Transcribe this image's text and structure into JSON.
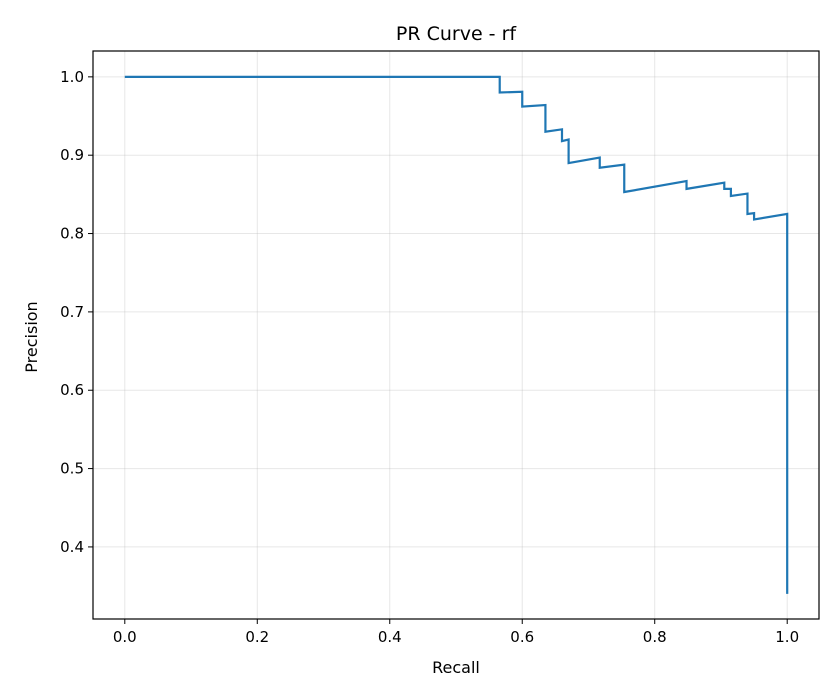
{
  "chart_data": {
    "type": "line",
    "title": "PR Curve - rf",
    "xlabel": "Recall",
    "ylabel": "Precision",
    "xlim": [
      -0.048,
      1.048
    ],
    "ylim": [
      0.308,
      1.033
    ],
    "xticks": [
      0.0,
      0.2,
      0.4,
      0.6,
      0.8,
      1.0
    ],
    "xtick_labels": [
      "0.0",
      "0.2",
      "0.4",
      "0.6",
      "0.8",
      "1.0"
    ],
    "yticks": [
      0.4,
      0.5,
      0.6,
      0.7,
      0.8,
      0.9,
      1.0
    ],
    "ytick_labels": [
      "0.4",
      "0.5",
      "0.6",
      "0.7",
      "0.8",
      "0.9",
      "1.0"
    ],
    "grid": true,
    "legend": "none",
    "color": "#1f77b4",
    "series": [
      {
        "step": "post",
        "x": [
          0.0,
          0.566,
          0.566,
          0.6,
          0.6,
          0.635,
          0.635,
          0.66,
          0.66,
          0.67,
          0.67,
          0.717,
          0.717,
          0.754,
          0.754,
          0.848,
          0.848,
          0.905,
          0.905,
          0.915,
          0.915,
          0.94,
          0.94,
          0.95,
          0.95,
          1.0,
          1.0
        ],
        "y": [
          1.0,
          1.0,
          0.98,
          0.981,
          0.962,
          0.964,
          0.93,
          0.933,
          0.918,
          0.92,
          0.89,
          0.897,
          0.884,
          0.888,
          0.853,
          0.867,
          0.857,
          0.865,
          0.857,
          0.857,
          0.848,
          0.851,
          0.825,
          0.826,
          0.818,
          0.825,
          0.34
        ]
      }
    ]
  }
}
